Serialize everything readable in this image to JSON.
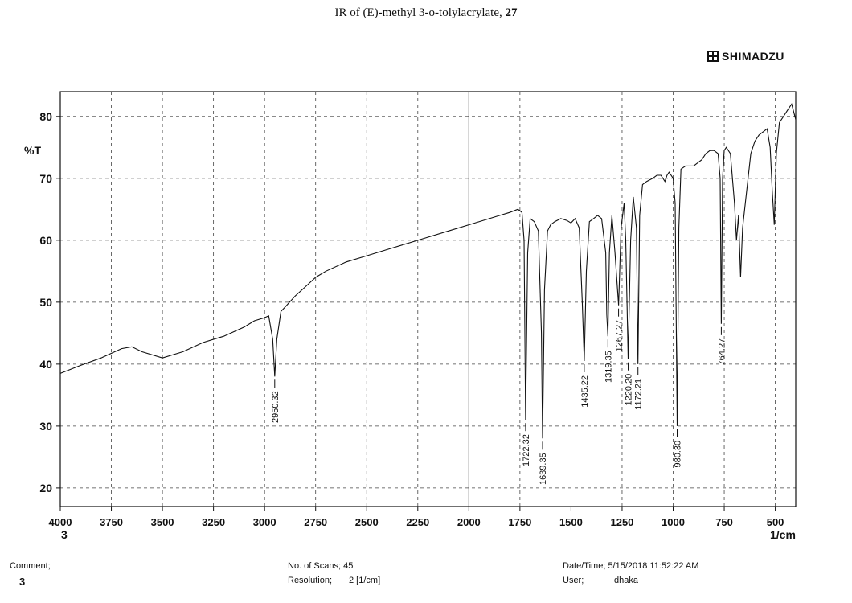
{
  "title": {
    "text": "IR of (E)-methyl 3-o-tolylacrylate, ",
    "compound_number": "27"
  },
  "brand": "SHIMADZU",
  "footer": {
    "comment_label": "Comment;",
    "comment_value": "3",
    "scans_label": "No. of Scans; 45",
    "resolution_label": "Resolution;",
    "resolution_value": "2 [1/cm]",
    "datetime_label": "Date/Time; 5/15/2018 11:52:22 AM",
    "user_label": "User;",
    "user_value": "dhaka"
  },
  "chart_data": {
    "type": "line",
    "title": "IR of (E)-methyl 3-o-tolylacrylate, 27",
    "xlabel": "1/cm",
    "ylabel": "%T",
    "x_corner_label": "3",
    "xlim": [
      4000,
      400
    ],
    "ylim": [
      17,
      84
    ],
    "x_ticks": [
      4000,
      3750,
      3500,
      3250,
      3000,
      2750,
      2500,
      2250,
      2000,
      1750,
      1500,
      1250,
      1000,
      750,
      500
    ],
    "y_ticks": [
      20,
      30,
      40,
      50,
      60,
      70,
      80
    ],
    "grid": true,
    "series": [
      {
        "x": [
          4000,
          3900,
          3800,
          3700,
          3650,
          3600,
          3500,
          3400,
          3300,
          3200,
          3100,
          3050,
          3000,
          2980,
          2960,
          2950.32,
          2940,
          2920,
          2900,
          2850,
          2800,
          2750,
          2700,
          2600,
          2500,
          2400,
          2300,
          2200,
          2100,
          2000,
          1900,
          1850,
          1800,
          1760,
          1740,
          1730,
          1722.32,
          1712,
          1700,
          1680,
          1660,
          1645,
          1639.35,
          1630,
          1615,
          1600,
          1580,
          1550,
          1520,
          1500,
          1480,
          1460,
          1445,
          1435.22,
          1425,
          1410,
          1390,
          1370,
          1350,
          1330,
          1325,
          1319.35,
          1312,
          1300,
          1285,
          1267.27,
          1255,
          1240,
          1232,
          1220.2,
          1208,
          1195,
          1180,
          1172.21,
          1164,
          1150,
          1130,
          1100,
          1080,
          1060,
          1040,
          1030,
          1020,
          1000,
          990,
          980.3,
          972,
          962,
          940,
          920,
          900,
          880,
          860,
          840,
          820,
          800,
          780,
          770,
          764.27,
          758,
          750,
          740,
          720,
          700,
          690,
          680,
          670,
          660,
          640,
          620,
          600,
          580,
          560,
          540,
          525,
          515,
          505,
          495,
          480,
          460,
          440,
          420,
          400
        ],
        "y": [
          38.5,
          39.8,
          41.0,
          42.5,
          42.8,
          42.0,
          41.0,
          42.0,
          43.5,
          44.5,
          46.0,
          47.0,
          47.5,
          47.8,
          44.0,
          38.0,
          44.0,
          48.5,
          49.2,
          51.0,
          52.5,
          54.0,
          55.0,
          56.5,
          57.5,
          58.5,
          59.5,
          60.5,
          61.5,
          62.5,
          63.5,
          64.0,
          64.5,
          65.0,
          64.5,
          60.0,
          31.0,
          58.0,
          63.5,
          63.0,
          61.5,
          45.0,
          28.0,
          52.0,
          61.5,
          62.5,
          63.0,
          63.5,
          63.2,
          62.8,
          63.5,
          62.0,
          50.0,
          40.5,
          55.0,
          63.0,
          63.5,
          64.0,
          63.5,
          58.0,
          48.0,
          44.5,
          58.0,
          64.0,
          58.0,
          49.5,
          62.0,
          66.0,
          60.0,
          40.8,
          60.0,
          67.0,
          62.0,
          40.0,
          64.0,
          69.0,
          69.5,
          70.0,
          70.5,
          70.5,
          69.5,
          70.5,
          71.0,
          70.0,
          66.0,
          30.0,
          62.0,
          71.5,
          72.0,
          72.0,
          72.0,
          72.5,
          73.0,
          74.0,
          74.5,
          74.5,
          74.0,
          70.0,
          46.5,
          70.0,
          74.5,
          75.0,
          74.0,
          66.0,
          60.0,
          64.0,
          54.0,
          62.0,
          68.0,
          74.0,
          76.0,
          77.0,
          77.5,
          78.0,
          75.0,
          68.0,
          62.5,
          74.0,
          79.0,
          80.0,
          81.0,
          82.0,
          79.5
        ]
      }
    ],
    "peak_labels": [
      {
        "x": 2950.32,
        "y": 38.0,
        "label": "2950.32"
      },
      {
        "x": 1722.32,
        "y": 31.0,
        "label": "1722.32"
      },
      {
        "x": 1639.35,
        "y": 28.0,
        "label": "1639.35"
      },
      {
        "x": 1435.22,
        "y": 40.5,
        "label": "1435.22"
      },
      {
        "x": 1319.35,
        "y": 44.5,
        "label": "1319.35"
      },
      {
        "x": 1267.27,
        "y": 49.5,
        "label": "1267.27"
      },
      {
        "x": 1220.2,
        "y": 40.8,
        "label": "1220.20"
      },
      {
        "x": 1172.21,
        "y": 40.0,
        "label": "1172.21"
      },
      {
        "x": 980.3,
        "y": 30.0,
        "label": "980.30"
      },
      {
        "x": 764.27,
        "y": 46.5,
        "label": "764.27"
      }
    ]
  }
}
